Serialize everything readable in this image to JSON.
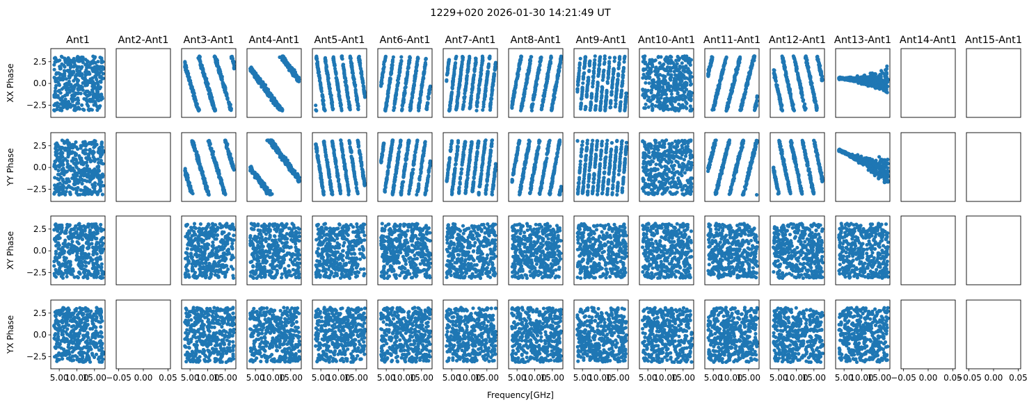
{
  "figure": {
    "title": "1229+020 2026-01-30 14:21:49 UT",
    "xlabel": "Frequency[GHz]",
    "point_color": "#1f77b4"
  },
  "chart_data": {
    "type": "scatter",
    "title": "1229+020 2026-01-30 14:21:49 UT",
    "xlabel": "Frequency[GHz]",
    "columns": [
      "Ant1",
      "Ant2-Ant1",
      "Ant3-Ant1",
      "Ant4-Ant1",
      "Ant5-Ant1",
      "Ant6-Ant1",
      "Ant7-Ant1",
      "Ant8-Ant1",
      "Ant9-Ant1",
      "Ant10-Ant1",
      "Ant11-Ant1",
      "Ant12-Ant1",
      "Ant13-Ant1",
      "Ant14-Ant1",
      "Ant15-Ant1"
    ],
    "rows": [
      "XX Phase",
      "YY Phase",
      "XY Phase",
      "YX Phase"
    ],
    "ylim": [
      -3.9,
      4.0
    ],
    "yticks": [
      -2.5,
      0.0,
      2.5
    ],
    "ytick_labels": [
      "−2.5",
      "0.0",
      "2.5"
    ],
    "data_xlim": [
      2.6,
      18.0
    ],
    "data_xticks": [
      5.0,
      10.0,
      15.0
    ],
    "data_xtick_labels": [
      "5.00",
      "10.00",
      "15.00"
    ],
    "empty_xlim": [
      -0.055,
      0.055
    ],
    "empty_xticks": [
      -0.05,
      0.0,
      0.05
    ],
    "empty_xtick_labels": [
      "−0.05",
      "0.00",
      "0.05"
    ],
    "empty_columns": [
      "Ant2-Ant1",
      "Ant14-Ant1",
      "Ant15-Ant1"
    ],
    "freq_range_ghz": [
      3.5,
      17.5
    ],
    "points_per_panel": 420,
    "phase_slopes_rad_per_ghz": {
      "Ant3-Ant1": -1.35,
      "Ant4-Ant1": -0.55,
      "Ant5-Ant1": -2.6,
      "Ant6-Ant1": 2.7,
      "Ant7-Ant1": 3.3,
      "Ant8-Ant1": 2.2,
      "Ant9-Ant1": 4.5,
      "Ant11-Ant1": 1.6,
      "Ant12-Ant1": -1.9
    },
    "ant13_xx": {
      "start_phase": 0.6,
      "end_phase": 0.2
    },
    "ant13_yy": {
      "start_phase": 2.0,
      "end_phase": -0.6
    }
  }
}
